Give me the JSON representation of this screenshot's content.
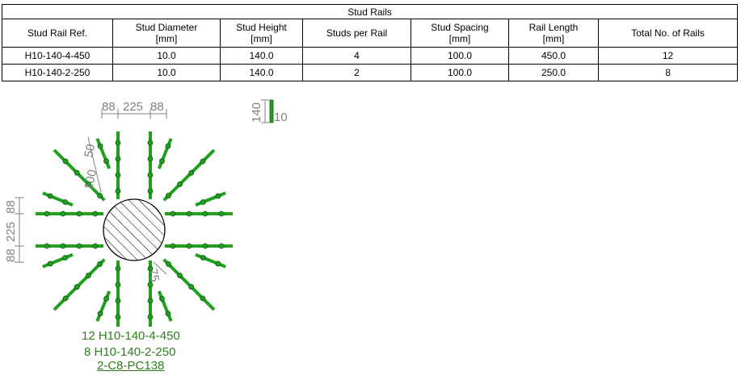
{
  "table": {
    "title": "Stud Rails",
    "headers": [
      [
        "Stud Rail Ref.",
        ""
      ],
      [
        "Stud Diameter",
        "[mm]"
      ],
      [
        "Stud Height",
        "[mm]"
      ],
      [
        "Studs per Rail",
        ""
      ],
      [
        "Stud Spacing",
        "[mm]"
      ],
      [
        "Rail Length",
        "[mm]"
      ],
      [
        "Total No. of Rails",
        ""
      ]
    ],
    "rows": [
      [
        "H10-140-4-450",
        "10.0",
        "140.0",
        "4",
        "100.0",
        "450.0",
        "12"
      ],
      [
        "H10-140-2-250",
        "10.0",
        "140.0",
        "2",
        "100.0",
        "250.0",
        "8"
      ]
    ]
  },
  "drawing": {
    "dims": {
      "top_left": "88",
      "top_mid": "225",
      "top_right": "88",
      "left_top": "88",
      "left_mid": "225",
      "left_bottom": "88",
      "stud_height": "140",
      "stud_diameter": "10",
      "diag_spacing": "100",
      "diag_edge": "50",
      "cover": "75"
    },
    "colors": {
      "rail": "#1fa01f",
      "rail_dark": "#0d5a0d",
      "dim": "#808080",
      "label": "#2e7d1f"
    }
  },
  "labels": {
    "rails_1": "12 H10-140-4-450",
    "rails_2": "8 H10-140-2-250",
    "column_ref": "2-C8-PC138"
  }
}
